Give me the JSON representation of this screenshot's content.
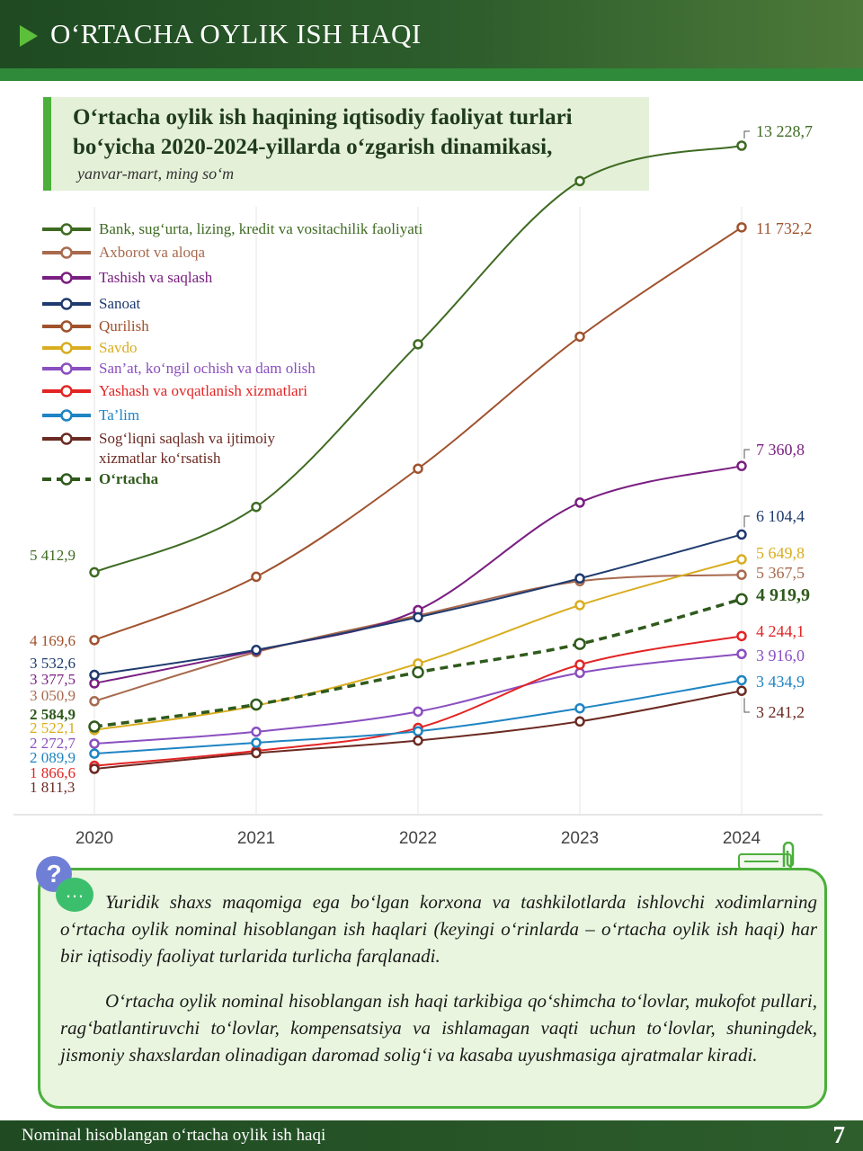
{
  "header": {
    "title": "O‘RTACHA OYLIK ISH HAQI"
  },
  "chart_data": {
    "type": "line",
    "title": "O‘rtacha oylik ish haqining iqtisodiy faoliyat turlari bo‘yicha 2020-2024-yillarda o‘zgarish dinamikasi,",
    "subtitle": "yanvar-mart, ming so‘m",
    "x": [
      "2020",
      "2021",
      "2022",
      "2023",
      "2024"
    ],
    "ylim": [
      1000,
      14000
    ],
    "grid": "vertical",
    "legend_position": "top-left",
    "series": [
      {
        "name": "Bank, sug‘urta, lizing, kredit va vositachilik faoliyati",
        "color": "#3e6b22",
        "values": [
          5412.9,
          6610,
          9590,
          12580,
          13228.7
        ],
        "start_label": "5 412,9",
        "end_label": "13 228,7"
      },
      {
        "name": "Axborot va aloqa",
        "color": "#a86a4e",
        "values": [
          3050.9,
          3950,
          4620,
          5250,
          5367.5
        ],
        "start_label": "3 050,9",
        "end_label": "5 367,5"
      },
      {
        "name": "Tashish va saqlash",
        "color": "#7a1f82",
        "values": [
          3377.5,
          3980,
          4720,
          6690,
          7360.8
        ],
        "start_label": "3 377,5",
        "end_label": "7 360,8"
      },
      {
        "name": "Sanoat",
        "color": "#1f3a6e",
        "values": [
          3532.6,
          3990,
          4590,
          5300,
          6104.4
        ],
        "start_label": "3 532,6",
        "end_label": "6 104,4"
      },
      {
        "name": "Qurilish",
        "color": "#a0522d",
        "values": [
          4169.6,
          5330,
          7310,
          9730,
          11732.2
        ],
        "start_label": "4 169,6",
        "end_label": "11 732,2"
      },
      {
        "name": "Savdo",
        "color": "#d9ad1f",
        "values": [
          2522.1,
          2970,
          3740,
          4810,
          5649.8
        ],
        "start_label": "2 522,1",
        "end_label": "5 649,8"
      },
      {
        "name": "San’at, ko‘ngil ochish va dam olish",
        "color": "#8a4fc0",
        "values": [
          2272.7,
          2490,
          2860,
          3570,
          3916.0
        ],
        "start_label": "2 272,7",
        "end_label": "3 916,0"
      },
      {
        "name": "Yashash va ovqatlanish xizmatlari",
        "color": "#e32424",
        "values": [
          1866.6,
          2140,
          2560,
          3720,
          4244.1
        ],
        "start_label": "1 866,6",
        "end_label": "4 244,1"
      },
      {
        "name": "Ta’lim",
        "color": "#1e84c3",
        "values": [
          2089.9,
          2290,
          2500,
          2920,
          3434.9
        ],
        "start_label": "2 089,9",
        "end_label": "3 434,9"
      },
      {
        "name": "Sog‘liqni saqlash va ijtimoiy xizmatlar ko‘rsatish",
        "name_lines": [
          "Sog‘liqni saqlash va ijtimoiy",
          "xizmatlar ko‘rsatish"
        ],
        "color": "#6b2a22",
        "values": [
          1811.3,
          2100,
          2330,
          2680,
          3241.2
        ],
        "start_label": "1 811,3",
        "end_label": "3 241,2"
      },
      {
        "name": "O‘rtacha",
        "color": "#2f5a1c",
        "dashed": true,
        "values": [
          2584.9,
          2990,
          3580,
          4100,
          4919.9
        ],
        "start_label": "2 584,9",
        "end_label": "4 919,9"
      }
    ]
  },
  "note": {
    "paragraphs": [
      "Yuridik shaxs maqomiga ega bo‘lgan korxona va tashkilotlarda ishlovchi xodimlarning o‘rtacha oylik nominal hisoblangan ish haqlari (keyingi o‘rinlarda – o‘rtacha oylik ish haqi) har bir iqtisodiy faoliyat turlarida turlicha farqlanadi.",
      "O‘rtacha oylik nominal hisoblangan ish haqi tarkibiga qo‘shimcha to‘lovlar, mukofot pullari, rag‘batlantiruvchi to‘lovlar, kompensatsiya va ishlamagan vaqti uchun to‘lovlar, shuningdek, jismoniy shaxslardan olinadigan daromad solig‘i va kasaba uyushmasiga ajratmalar kiradi."
    ],
    "question_glyph": "?",
    "chat_glyph": "…"
  },
  "footer": {
    "text": "Nominal hisoblangan o‘rtacha oylik ish haqi",
    "page_number": "7"
  }
}
